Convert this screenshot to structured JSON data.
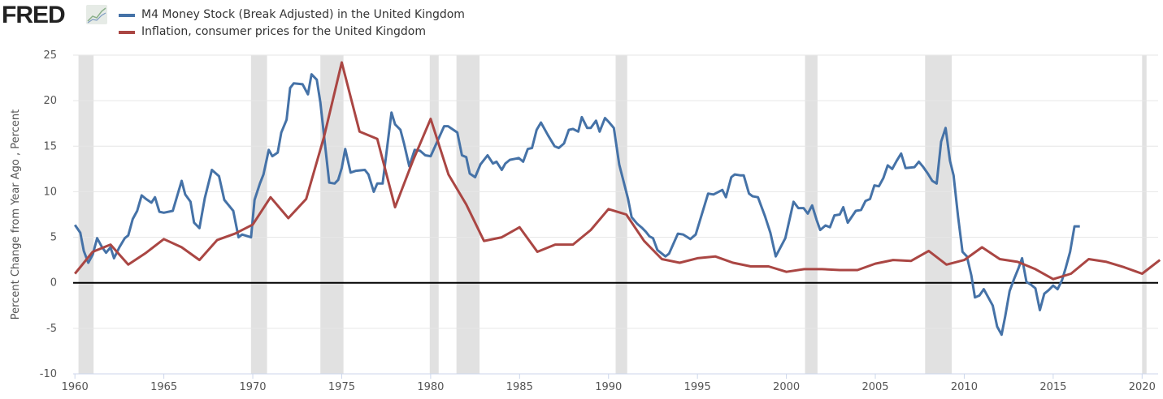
{
  "header": {
    "logo": "FRED"
  },
  "legend": [
    {
      "label": "M4 Money Stock (Break Adjusted) in the United Kingdom",
      "color": "#4572a7"
    },
    {
      "label": "Inflation, consumer prices for the United Kingdom",
      "color": "#aa4643"
    }
  ],
  "chart_data": {
    "type": "line",
    "title": "",
    "xlabel": "",
    "ylabel": "Percent Change from Year Ago , Percent",
    "xlim": [
      1959.9,
      2020.9
    ],
    "ylim": [
      -10,
      25
    ],
    "x_ticks": [
      "1960",
      "1965",
      "1970",
      "1975",
      "1980",
      "1985",
      "1990",
      "1995",
      "2000",
      "2005",
      "2010",
      "2015",
      "2020"
    ],
    "y_ticks": [
      "25",
      "20",
      "15",
      "10",
      "5",
      "0",
      "-5",
      "-10"
    ],
    "grid": true,
    "legend_position": "top-left",
    "zero_line": true,
    "recessions": [
      [
        1960.2,
        1961.05
      ],
      [
        1969.9,
        1970.8
      ],
      [
        1973.8,
        1975.1
      ],
      [
        1979.95,
        1980.45
      ],
      [
        1981.45,
        1982.75
      ],
      [
        1990.4,
        1991.05
      ],
      [
        2001.05,
        2001.75
      ],
      [
        2007.8,
        2009.3
      ],
      [
        2020.0,
        2020.25
      ]
    ],
    "recession_color": "#e1e1e1",
    "series": [
      {
        "name": "M4 Money Stock (Break Adjusted) in the United Kingdom",
        "color": "#4572a7",
        "x": [
          1960.0,
          1960.3,
          1960.5,
          1960.75,
          1961.0,
          1961.25,
          1961.5,
          1961.75,
          1962.0,
          1962.2,
          1962.5,
          1962.8,
          1963.0,
          1963.25,
          1963.5,
          1963.75,
          1964.0,
          1964.3,
          1964.5,
          1964.75,
          1965.0,
          1965.5,
          1966.0,
          1966.2,
          1966.5,
          1966.7,
          1967.0,
          1967.3,
          1967.7,
          1968.1,
          1968.4,
          1968.9,
          1969.2,
          1969.4,
          1969.9,
          1970.1,
          1970.4,
          1970.6,
          1970.9,
          1971.1,
          1971.4,
          1971.6,
          1971.9,
          1972.1,
          1972.3,
          1972.8,
          1973.1,
          1973.3,
          1973.6,
          1973.8,
          1974.3,
          1974.6,
          1974.8,
          1975.0,
          1975.2,
          1975.5,
          1975.8,
          1976.3,
          1976.5,
          1976.8,
          1977.0,
          1977.3,
          1977.8,
          1978.0,
          1978.3,
          1978.5,
          1978.8,
          1979.1,
          1979.4,
          1979.7,
          1980.0,
          1980.76,
          1980.98,
          1981.5,
          1981.76,
          1982.0,
          1982.2,
          1982.5,
          1982.8,
          1983.2,
          1983.5,
          1983.7,
          1984.0,
          1984.2,
          1984.45,
          1984.96,
          1985.2,
          1985.46,
          1985.7,
          1985.96,
          1986.2,
          1986.6,
          1986.97,
          1987.2,
          1987.5,
          1987.77,
          1988.0,
          1988.3,
          1988.5,
          1988.8,
          1989.0,
          1989.3,
          1989.5,
          1989.8,
          1990.0,
          1990.3,
          1990.6,
          1991.1,
          1991.3,
          1991.6,
          1991.9,
          1992.1,
          1992.3,
          1992.5,
          1992.75,
          1993.2,
          1993.4,
          1993.9,
          1994.2,
          1994.6,
          1994.9,
          1995.6,
          1995.9,
          1996.4,
          1996.6,
          1996.9,
          1997.1,
          1997.4,
          1997.6,
          1997.9,
          1998.1,
          1998.4,
          1998.8,
          1999.1,
          1999.4,
          1999.94,
          2000.4,
          2000.67,
          2000.97,
          2001.2,
          2001.45,
          2001.7,
          2001.9,
          2002.2,
          2002.45,
          2002.7,
          2003.0,
          2003.2,
          2003.45,
          2003.9,
          2004.2,
          2004.45,
          2004.7,
          2004.95,
          2005.2,
          2005.45,
          2005.7,
          2005.95,
          2006.2,
          2006.45,
          2006.7,
          2007.2,
          2007.45,
          2007.7,
          2007.95,
          2008.2,
          2008.45,
          2008.7,
          2008.95,
          2009.2,
          2009.4,
          2009.65,
          2009.9,
          2010.15,
          2010.4,
          2010.6,
          2010.85,
          2011.1,
          2011.35,
          2011.6,
          2011.85,
          2012.1,
          2012.3,
          2012.55,
          2012.8,
          2013.05,
          2013.25,
          2013.5,
          2013.75,
          2014.0,
          2014.25,
          2014.5,
          2014.75,
          2015.0,
          2015.25,
          2015.5,
          2015.7,
          2015.95,
          2016.2,
          2016.5
        ],
        "values": [
          6.35,
          5.5,
          3.5,
          2.2,
          3.1,
          4.9,
          4.0,
          3.3,
          3.9,
          2.7,
          3.9,
          4.9,
          5.2,
          7.0,
          7.9,
          9.6,
          9.2,
          8.8,
          9.4,
          7.8,
          7.7,
          7.9,
          11.2,
          9.7,
          8.9,
          6.6,
          6.0,
          9.3,
          12.4,
          11.7,
          9.1,
          7.9,
          5.0,
          5.3,
          5.0,
          9.1,
          10.9,
          11.9,
          14.6,
          13.9,
          14.3,
          16.5,
          17.9,
          21.4,
          21.9,
          21.8,
          20.7,
          22.9,
          22.3,
          19.8,
          11.0,
          10.9,
          11.3,
          12.6,
          14.7,
          12.1,
          12.3,
          12.4,
          11.9,
          10.0,
          10.9,
          10.9,
          18.7,
          17.4,
          16.8,
          15.3,
          12.8,
          14.6,
          14.5,
          14.0,
          13.9,
          17.2,
          17.2,
          16.5,
          14.0,
          13.8,
          12.0,
          11.6,
          13.0,
          14.0,
          13.1,
          13.3,
          12.4,
          13.1,
          13.5,
          13.7,
          13.3,
          14.7,
          14.8,
          16.8,
          17.6,
          16.2,
          15.0,
          14.8,
          15.3,
          16.8,
          16.9,
          16.6,
          18.2,
          17.0,
          17.0,
          17.8,
          16.6,
          18.1,
          17.7,
          17.0,
          13.0,
          9.2,
          7.2,
          6.5,
          6.0,
          5.6,
          5.1,
          4.9,
          3.6,
          2.9,
          3.2,
          5.4,
          5.3,
          4.8,
          5.3,
          9.8,
          9.7,
          10.2,
          9.4,
          11.6,
          11.9,
          11.8,
          11.8,
          9.8,
          9.5,
          9.4,
          7.3,
          5.5,
          2.9,
          4.9,
          8.9,
          8.2,
          8.2,
          7.6,
          8.5,
          6.9,
          5.8,
          6.3,
          6.1,
          7.4,
          7.5,
          8.3,
          6.6,
          7.9,
          8.0,
          9.0,
          9.2,
          10.7,
          10.6,
          11.5,
          12.9,
          12.5,
          13.4,
          14.2,
          12.6,
          12.7,
          13.3,
          12.7,
          12.0,
          11.2,
          10.9,
          15.5,
          17.0,
          13.4,
          11.8,
          7.3,
          3.4,
          2.9,
          0.8,
          -1.6,
          -1.4,
          -0.7,
          -1.6,
          -2.5,
          -4.8,
          -5.7,
          -3.7,
          -0.9,
          0.4,
          1.6,
          2.7,
          0.1,
          -0.2,
          -0.6,
          -3.0,
          -1.2,
          -0.8,
          -0.3,
          -0.7,
          0.3,
          1.6,
          3.4,
          6.2,
          6.2
        ]
      },
      {
        "name": "Inflation, consumer prices for the United Kingdom",
        "color": "#aa4643",
        "x": [
          1960,
          1961,
          1962,
          1963,
          1964,
          1965,
          1966,
          1967,
          1968,
          1969,
          1970,
          1971,
          1972,
          1973,
          1974,
          1975,
          1976,
          1977,
          1978,
          1979,
          1980,
          1981,
          1982,
          1983,
          1984,
          1985,
          1986,
          1987,
          1988,
          1989,
          1990,
          1991,
          1992,
          1993,
          1994,
          1995,
          1996,
          1997,
          1998,
          1999,
          2000,
          2001,
          2002,
          2003,
          2004,
          2005,
          2006,
          2007,
          2008,
          2009,
          2010,
          2011,
          2012,
          2013,
          2014,
          2015,
          2016,
          2017,
          2018,
          2019,
          2020,
          2021
        ],
        "values": [
          1.0,
          3.4,
          4.2,
          2.0,
          3.3,
          4.8,
          3.9,
          2.5,
          4.7,
          5.4,
          6.4,
          9.4,
          7.1,
          9.2,
          16.0,
          24.2,
          16.6,
          15.8,
          8.3,
          13.4,
          18.0,
          11.9,
          8.6,
          4.6,
          5.0,
          6.1,
          3.4,
          4.2,
          4.2,
          5.8,
          8.1,
          7.5,
          4.6,
          2.6,
          2.2,
          2.7,
          2.9,
          2.2,
          1.8,
          1.8,
          1.2,
          1.5,
          1.5,
          1.4,
          1.4,
          2.1,
          2.5,
          2.4,
          3.5,
          2.0,
          2.5,
          3.9,
          2.6,
          2.3,
          1.5,
          0.4,
          1.0,
          2.6,
          2.3,
          1.7,
          1.0,
          2.5
        ]
      }
    ]
  }
}
